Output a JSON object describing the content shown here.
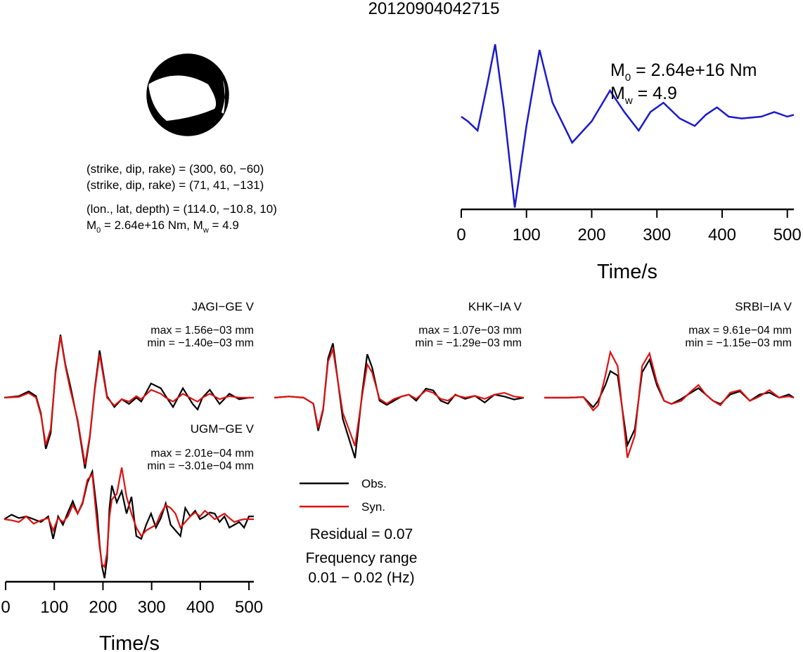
{
  "figure_title": "20120904042715",
  "colors": {
    "obs": "#000000",
    "syn": "#dd1111",
    "stf": "#1a1acc"
  },
  "mechanism": {
    "plane1": "(strike, dip, rake) = (300, 60, −60)",
    "plane2": "(strike, dip, rake) = (71, 41, −131)",
    "location": "(lon., lat, depth) = (114.0, −10.8, 10)",
    "moment_pre": "M",
    "moment_sub": "0",
    "moment_mid": " = 2.64e+16 Nm, M",
    "mag_sub": "w",
    "mag_post": " = 4.9"
  },
  "stf_labels": {
    "m0_pre": "M",
    "m0_sub": "0",
    "m0_post": " = 2.64e+16 Nm",
    "mw_pre": "M",
    "mw_sub": "w",
    "mw_post": " = 4.9"
  },
  "legend": {
    "obs": "Obs.",
    "syn": "Syn.",
    "residual": "Residual = 0.07",
    "freq_title": "Frequency range",
    "freq_value": "0.01 − 0.02 (Hz)"
  },
  "chart_data": [
    {
      "type": "line",
      "title": "",
      "xlabel": "Time/s",
      "ylabel": "",
      "xlim": [
        0,
        510
      ],
      "xticks": [
        0,
        100,
        200,
        300,
        400,
        500
      ],
      "grid": false,
      "series": [
        {
          "x": [
            0,
            10,
            25,
            40,
            52,
            65,
            82,
            100,
            120,
            140,
            170,
            200,
            228,
            250,
            272,
            290,
            310,
            335,
            358,
            375,
            392,
            410,
            430,
            460,
            480,
            500,
            510
          ],
          "values": [
            0.0,
            -0.05,
            -0.15,
            0.35,
            0.78,
            0.1,
            -0.98,
            -0.1,
            0.72,
            0.15,
            -0.28,
            -0.05,
            0.28,
            0.05,
            -0.15,
            0.05,
            0.15,
            -0.02,
            -0.1,
            0.02,
            0.1,
            0.0,
            -0.02,
            0.0,
            0.05,
            0.0,
            0.02
          ]
        }
      ]
    },
    {
      "type": "line",
      "title": "JAGI−GE V",
      "annotations": [
        "max = 1.56e−03 mm",
        "min = −1.40e−03 mm"
      ],
      "xlim": [
        0,
        510
      ],
      "series": [
        {
          "name": "Obs.",
          "x": [
            0,
            30,
            50,
            65,
            75,
            85,
            95,
            105,
            115,
            125,
            135,
            150,
            165,
            175,
            185,
            195,
            210,
            225,
            240,
            255,
            270,
            280,
            300,
            320,
            330,
            345,
            365,
            385,
            395,
            405,
            420,
            440,
            460,
            480,
            500,
            510
          ],
          "values": [
            0.0,
            0.02,
            0.08,
            0.02,
            -0.2,
            -0.65,
            -0.45,
            0.35,
            0.8,
            0.42,
            0.15,
            -0.3,
            -0.9,
            -0.5,
            0.12,
            0.6,
            0.02,
            -0.12,
            -0.02,
            -0.08,
            0.0,
            -0.05,
            0.18,
            0.12,
            0.02,
            -0.12,
            0.12,
            -0.08,
            -0.15,
            0.0,
            0.1,
            -0.08,
            0.05,
            -0.02,
            0.0,
            0.0
          ]
        },
        {
          "name": "Syn.",
          "x": [
            0,
            30,
            50,
            65,
            75,
            85,
            95,
            105,
            115,
            125,
            135,
            150,
            165,
            175,
            185,
            195,
            210,
            225,
            240,
            255,
            270,
            280,
            300,
            320,
            330,
            345,
            365,
            385,
            395,
            405,
            420,
            440,
            460,
            480,
            500,
            510
          ],
          "values": [
            0.0,
            0.01,
            0.06,
            0.0,
            -0.22,
            -0.6,
            -0.4,
            0.32,
            0.78,
            0.4,
            0.1,
            -0.28,
            -0.85,
            -0.48,
            0.1,
            0.55,
            0.0,
            -0.1,
            -0.02,
            -0.05,
            0.02,
            -0.02,
            0.1,
            0.05,
            0.0,
            -0.05,
            0.05,
            -0.02,
            -0.05,
            0.0,
            0.05,
            -0.02,
            0.02,
            0.0,
            0.0,
            0.0
          ]
        }
      ]
    },
    {
      "type": "line",
      "title": "KHK−IA V",
      "annotations": [
        "max = 1.07e−03 mm",
        "min = −1.29e−03 mm"
      ],
      "xlim": [
        0,
        510
      ],
      "series": [
        {
          "name": "Obs.",
          "x": [
            0,
            30,
            60,
            80,
            90,
            100,
            110,
            120,
            140,
            165,
            180,
            190,
            200,
            215,
            230,
            245,
            260,
            275,
            290,
            310,
            325,
            340,
            355,
            370,
            390,
            410,
            430,
            450,
            470,
            490,
            510
          ],
          "values": [
            0.0,
            0.02,
            0.0,
            -0.1,
            -0.55,
            -0.2,
            0.65,
            0.9,
            -0.35,
            -1.0,
            0.1,
            0.72,
            0.5,
            -0.05,
            -0.12,
            -0.05,
            0.02,
            0.05,
            -0.05,
            0.15,
            0.12,
            -0.05,
            -0.1,
            0.05,
            -0.02,
            0.03,
            -0.08,
            0.05,
            0.02,
            -0.03,
            0.0
          ]
        },
        {
          "name": "Syn.",
          "x": [
            0,
            30,
            60,
            80,
            90,
            100,
            110,
            120,
            140,
            165,
            180,
            190,
            200,
            215,
            230,
            245,
            260,
            275,
            290,
            310,
            325,
            340,
            355,
            370,
            390,
            410,
            430,
            450,
            470,
            490,
            510
          ],
          "values": [
            0.0,
            0.02,
            0.0,
            -0.1,
            -0.5,
            -0.18,
            0.6,
            0.8,
            -0.25,
            -0.8,
            0.05,
            0.55,
            0.42,
            -0.02,
            -0.1,
            -0.02,
            0.02,
            0.05,
            -0.02,
            0.12,
            0.08,
            -0.02,
            -0.05,
            0.04,
            0.0,
            0.03,
            -0.02,
            0.05,
            0.08,
            0.02,
            0.0
          ]
        }
      ]
    },
    {
      "type": "line",
      "title": "SRBI−IA V",
      "annotations": [
        "max = 9.61e−04 mm",
        "min = −1.15e−03 mm"
      ],
      "xlim": [
        0,
        510
      ],
      "series": [
        {
          "name": "Obs.",
          "x": [
            0,
            50,
            80,
            100,
            110,
            125,
            135,
            150,
            170,
            185,
            200,
            215,
            230,
            245,
            260,
            280,
            300,
            315,
            330,
            345,
            360,
            380,
            400,
            420,
            440,
            460,
            480,
            500,
            510
          ],
          "values": [
            0.0,
            0.0,
            0.01,
            -0.15,
            -0.05,
            0.2,
            0.42,
            0.35,
            -0.75,
            -0.5,
            0.4,
            0.6,
            0.2,
            -0.05,
            -0.1,
            -0.02,
            0.08,
            0.15,
            0.05,
            -0.05,
            -0.1,
            0.05,
            0.1,
            -0.05,
            0.05,
            0.08,
            0.0,
            0.05,
            0.0
          ]
        },
        {
          "name": "Syn.",
          "x": [
            0,
            50,
            80,
            100,
            110,
            125,
            135,
            150,
            170,
            185,
            200,
            215,
            230,
            245,
            260,
            280,
            300,
            315,
            330,
            345,
            360,
            380,
            400,
            420,
            440,
            460,
            480,
            500,
            510
          ],
          "values": [
            0.0,
            0.0,
            0.01,
            -0.2,
            -0.12,
            0.35,
            0.72,
            0.5,
            -0.95,
            -0.6,
            0.5,
            0.7,
            0.25,
            -0.05,
            -0.1,
            -0.05,
            0.1,
            0.2,
            0.05,
            -0.05,
            -0.12,
            0.08,
            0.12,
            -0.05,
            0.02,
            0.12,
            0.0,
            0.02,
            0.0
          ]
        }
      ]
    },
    {
      "type": "line",
      "title": "UGM−GE V",
      "annotations": [
        "max = 2.01e−04 mm",
        "min = −3.01e−04 mm"
      ],
      "xlabel": "Time/s",
      "xlim": [
        0,
        510
      ],
      "xticks": [
        0,
        100,
        200,
        300,
        400,
        500
      ],
      "series": [
        {
          "name": "Obs.",
          "x": [
            0,
            15,
            30,
            45,
            60,
            75,
            90,
            100,
            110,
            120,
            130,
            140,
            150,
            160,
            170,
            180,
            190,
            195,
            200,
            205,
            210,
            215,
            220,
            230,
            240,
            250,
            260,
            270,
            280,
            290,
            300,
            310,
            320,
            330,
            340,
            350,
            360,
            370,
            380,
            390,
            400,
            410,
            420,
            430,
            440,
            450,
            460,
            470,
            480,
            490,
            500,
            510
          ],
          "values": [
            0.0,
            0.08,
            0.02,
            0.05,
            0.0,
            -0.05,
            0.05,
            -0.35,
            0.05,
            -0.1,
            0.12,
            0.32,
            0.1,
            0.28,
            0.65,
            0.85,
            0.1,
            -0.45,
            -0.85,
            -1.05,
            -0.7,
            0.2,
            0.6,
            0.3,
            0.5,
            0.1,
            0.4,
            -0.3,
            -0.35,
            -0.1,
            0.1,
            -0.15,
            0.02,
            0.28,
            -0.1,
            -0.2,
            -0.3,
            0.2,
            0.05,
            0.15,
            0.0,
            0.05,
            0.12,
            0.1,
            -0.05,
            0.05,
            -0.15,
            -0.1,
            -0.05,
            -0.15,
            0.05,
            0.05
          ]
        },
        {
          "name": "Syn.",
          "x": [
            0,
            15,
            30,
            45,
            60,
            75,
            90,
            100,
            110,
            120,
            130,
            140,
            150,
            160,
            170,
            180,
            190,
            195,
            200,
            205,
            210,
            215,
            220,
            230,
            240,
            250,
            260,
            270,
            280,
            290,
            300,
            310,
            320,
            330,
            340,
            350,
            360,
            370,
            380,
            390,
            400,
            410,
            420,
            430,
            440,
            450,
            460,
            470,
            480,
            490,
            500,
            510
          ],
          "values": [
            0.0,
            -0.02,
            -0.05,
            0.05,
            -0.08,
            -0.02,
            0.02,
            -0.2,
            0.02,
            -0.05,
            0.05,
            0.25,
            0.1,
            0.3,
            0.7,
            0.8,
            -0.1,
            -0.5,
            -0.8,
            -0.85,
            -0.6,
            0.05,
            0.35,
            0.45,
            0.92,
            0.4,
            0.1,
            -0.15,
            -0.3,
            -0.2,
            -0.15,
            -0.1,
            0.1,
            0.25,
            0.2,
            0.1,
            -0.15,
            -0.05,
            0.05,
            0.12,
            0.05,
            0.15,
            0.08,
            0.0,
            0.05,
            0.1,
            0.02,
            -0.05,
            -0.02,
            0.0,
            0.0,
            0.0
          ]
        }
      ]
    }
  ]
}
